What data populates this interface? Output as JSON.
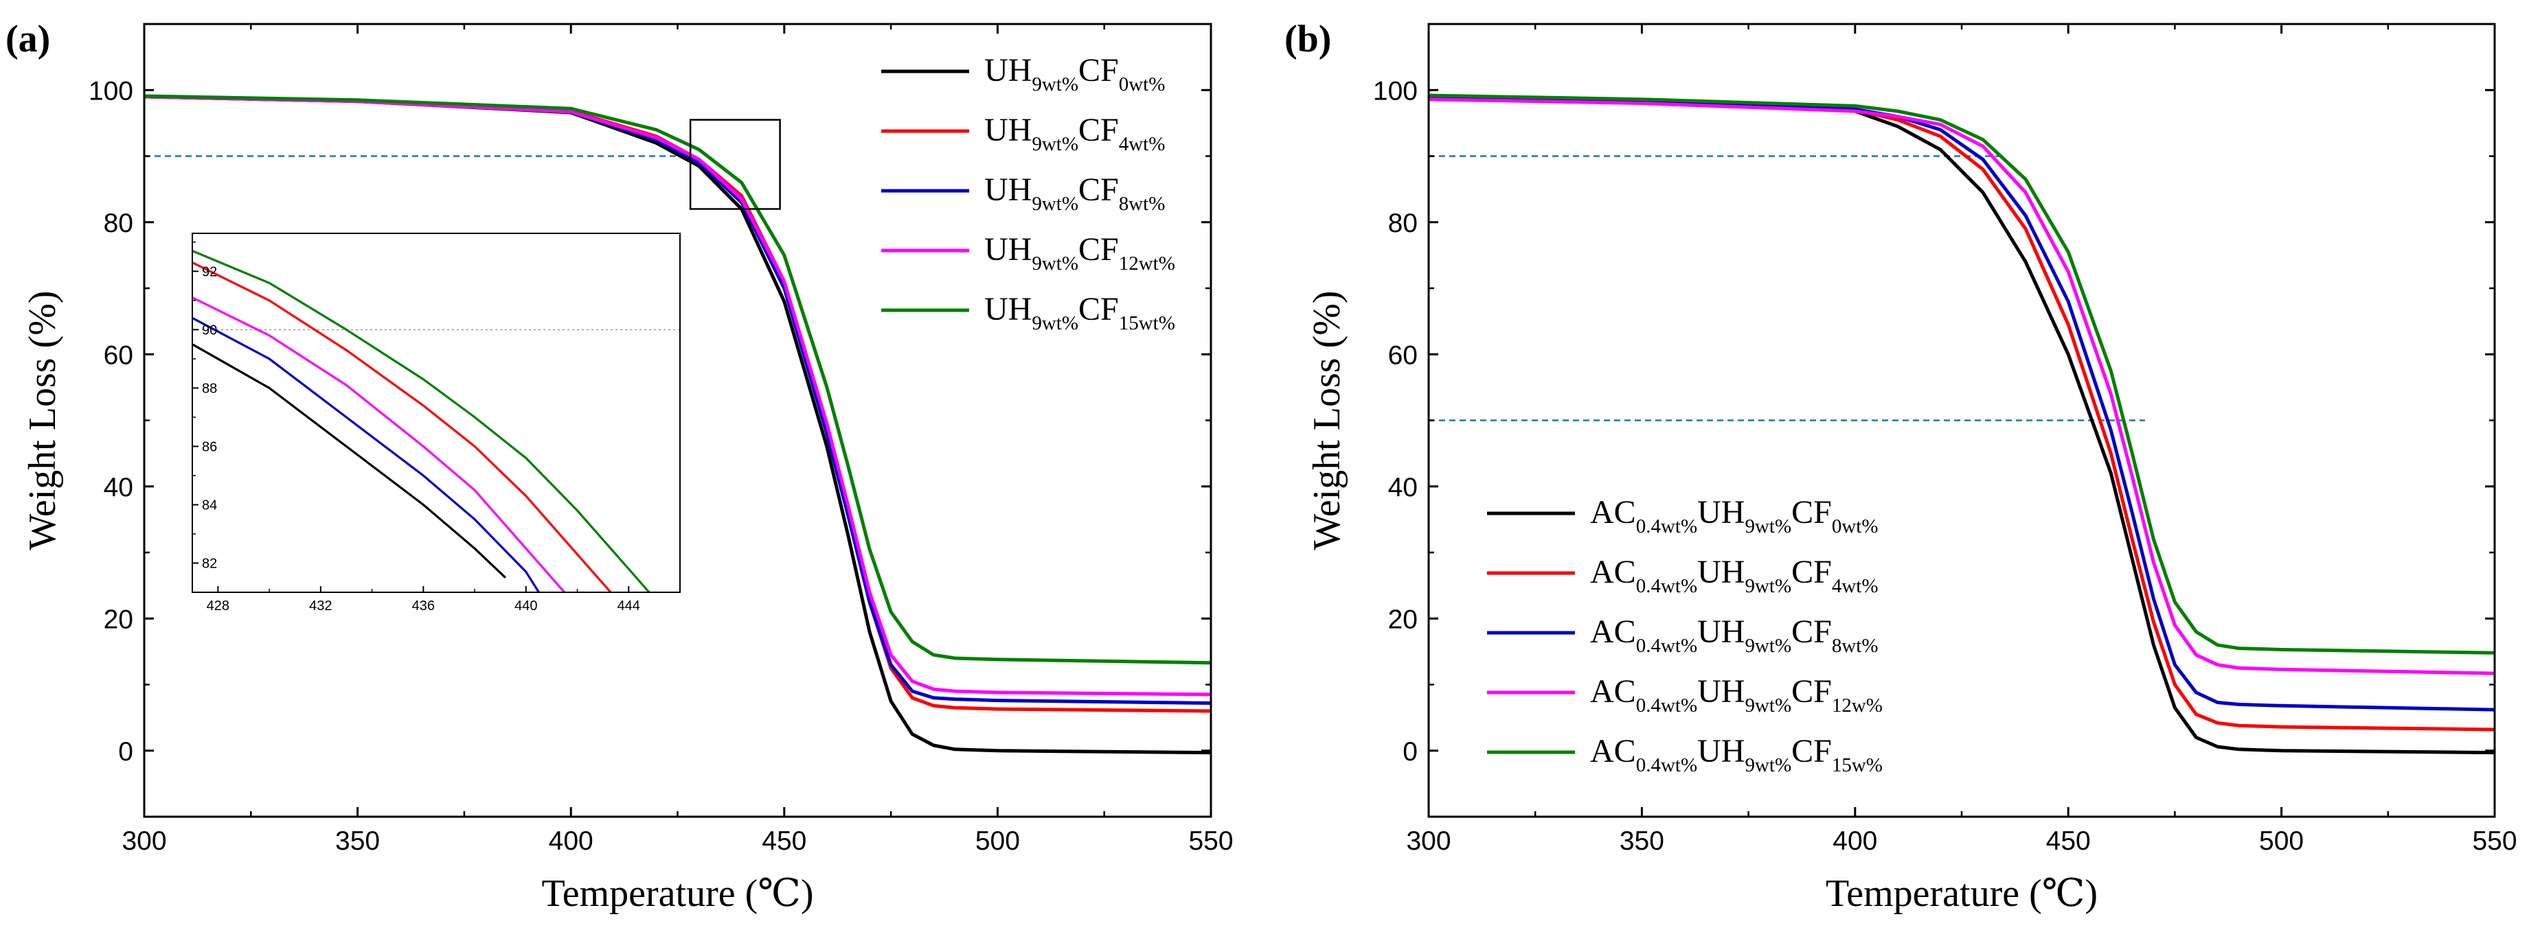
{
  "chart_data": [
    {
      "id": "a",
      "type": "line",
      "panel_label": "(a)",
      "xlabel": "Temperature (℃)",
      "ylabel": "Weight Loss (%)",
      "xlim": [
        300,
        550
      ],
      "ylim": [
        -10,
        110
      ],
      "xticks": [
        300,
        350,
        400,
        450,
        500,
        550
      ],
      "yticks": [
        0,
        20,
        40,
        60,
        80,
        100
      ],
      "reference_lines": [
        {
          "axis": "y",
          "value": 90,
          "style": "dashed",
          "color": "#1f77b4",
          "x_from": 300,
          "x_to": 425
        }
      ],
      "zoom_box": {
        "x": [
          428,
          449
        ],
        "y": [
          82,
          95.5
        ]
      },
      "legend": {
        "position": "top-right",
        "entries": [
          {
            "prefix": "UH",
            "parts": [
              [
                "9wt%",
                "sub"
              ],
              [
                "CF",
                "base"
              ],
              [
                "0wt%",
                "sub"
              ]
            ],
            "color": "#000000"
          },
          {
            "prefix": "UH",
            "parts": [
              [
                "9wt%",
                "sub"
              ],
              [
                "CF",
                "base"
              ],
              [
                "4wt%",
                "sub"
              ]
            ],
            "color": "#ff0000"
          },
          {
            "prefix": "UH",
            "parts": [
              [
                "9wt%",
                "sub"
              ],
              [
                "CF",
                "base"
              ],
              [
                "8wt%",
                "sub"
              ]
            ],
            "color": "#0000cc"
          },
          {
            "prefix": "UH",
            "parts": [
              [
                "9wt%",
                "sub"
              ],
              [
                "CF",
                "base"
              ],
              [
                "12wt%",
                "sub"
              ]
            ],
            "color": "#ff00ff"
          },
          {
            "prefix": "UH",
            "parts": [
              [
                "9wt%",
                "sub"
              ],
              [
                "CF",
                "base"
              ],
              [
                "15wt%",
                "sub"
              ]
            ],
            "color": "#008000"
          }
        ]
      },
      "series": [
        {
          "name": "UH9wt%CF0wt%",
          "color": "#000000",
          "x": [
            300,
            350,
            400,
            420,
            430,
            440,
            450,
            460,
            465,
            470,
            475,
            480,
            485,
            490,
            500,
            550
          ],
          "y": [
            99.0,
            98.3,
            96.6,
            92.0,
            88.5,
            82.0,
            68.0,
            46.0,
            32.5,
            18.0,
            7.5,
            2.5,
            0.8,
            0.2,
            0.0,
            -0.3
          ]
        },
        {
          "name": "UH9wt%CF4wt%",
          "color": "#ff0000",
          "x": [
            300,
            350,
            400,
            420,
            430,
            440,
            450,
            460,
            465,
            470,
            475,
            480,
            485,
            490,
            500,
            550
          ],
          "y": [
            99.0,
            98.3,
            96.8,
            93.0,
            89.5,
            84.0,
            71.0,
            49.0,
            36.0,
            22.5,
            12.5,
            8.0,
            6.8,
            6.5,
            6.3,
            6.0
          ]
        },
        {
          "name": "UH9wt%CF8wt%",
          "color": "#0000cc",
          "x": [
            300,
            350,
            400,
            420,
            430,
            440,
            450,
            460,
            465,
            470,
            475,
            480,
            485,
            490,
            500,
            550
          ],
          "y": [
            99.0,
            98.3,
            96.7,
            92.5,
            89.0,
            83.0,
            70.0,
            48.0,
            35.5,
            22.5,
            13.0,
            9.0,
            8.0,
            7.8,
            7.6,
            7.2
          ]
        },
        {
          "name": "UH9wt%CF12wt%",
          "color": "#ff00ff",
          "x": [
            300,
            350,
            400,
            420,
            430,
            440,
            450,
            460,
            465,
            470,
            475,
            480,
            485,
            490,
            500,
            550
          ],
          "y": [
            99.0,
            98.3,
            96.7,
            92.8,
            89.5,
            83.5,
            71.0,
            49.5,
            37.0,
            24.0,
            14.5,
            10.5,
            9.3,
            9.0,
            8.8,
            8.5
          ]
        },
        {
          "name": "UH9wt%CF15wt%",
          "color": "#008000",
          "x": [
            300,
            350,
            400,
            420,
            430,
            440,
            450,
            460,
            465,
            470,
            475,
            480,
            485,
            490,
            500,
            550
          ],
          "y": [
            99.1,
            98.5,
            97.2,
            94.0,
            91.0,
            86.0,
            75.0,
            55.0,
            43.0,
            30.5,
            21.0,
            16.5,
            14.5,
            14.0,
            13.8,
            13.3
          ]
        }
      ],
      "inset": {
        "xlim": [
          427,
          446
        ],
        "ylim": [
          81,
          93.3
        ],
        "xticks": [
          428,
          432,
          436,
          440,
          444
        ],
        "yticks": [
          82,
          84,
          86,
          88,
          90,
          92
        ],
        "reference_lines": [
          {
            "axis": "y",
            "value": 90,
            "style": "dotted",
            "color": "#999999"
          }
        ],
        "series": [
          {
            "name": "UH9wt%CF0wt%",
            "color": "#000000",
            "x": [
              427,
              430,
              433,
              436,
              438,
              439.2
            ],
            "y": [
              89.5,
              88.0,
              86.0,
              84.0,
              82.5,
              81.5
            ]
          },
          {
            "name": "UH9wt%CF8wt%",
            "color": "#0000cc",
            "x": [
              427,
              430,
              433,
              436,
              438,
              440,
              440.5
            ],
            "y": [
              90.4,
              89.0,
              87.0,
              85.0,
              83.5,
              81.7,
              81.0
            ]
          },
          {
            "name": "UH9wt%CF12wt%",
            "color": "#ff00ff",
            "x": [
              427,
              430,
              433,
              436,
              438,
              440,
              441.5
            ],
            "y": [
              91.1,
              89.8,
              88.1,
              86.0,
              84.5,
              82.5,
              81.0
            ]
          },
          {
            "name": "UH9wt%CF4wt%",
            "color": "#ff0000",
            "x": [
              427,
              430,
              433,
              436,
              438,
              440,
              442,
              443.3
            ],
            "y": [
              92.3,
              91.0,
              89.3,
              87.4,
              86.0,
              84.3,
              82.3,
              81.0
            ]
          },
          {
            "name": "UH9wt%CF15wt%",
            "color": "#008000",
            "x": [
              427,
              430,
              433,
              436,
              438,
              440,
              442,
              444,
              445
            ],
            "y": [
              92.7,
              91.6,
              90.0,
              88.3,
              87.0,
              85.6,
              83.8,
              81.8,
              80.8
            ]
          }
        ]
      }
    },
    {
      "id": "b",
      "type": "line",
      "panel_label": "(b)",
      "xlabel": "Temperature (℃)",
      "ylabel": "Weight Loss (%)",
      "xlim": [
        300,
        550
      ],
      "ylim": [
        -10,
        110
      ],
      "xticks": [
        300,
        350,
        400,
        450,
        500,
        550
      ],
      "yticks": [
        0,
        20,
        40,
        60,
        80,
        100
      ],
      "reference_lines": [
        {
          "axis": "y",
          "value": 90,
          "style": "dashed",
          "color": "#1f77b4",
          "x_from": 300,
          "x_to": 434
        },
        {
          "axis": "y",
          "value": 50,
          "style": "dashed",
          "color": "#1f77b4",
          "x_from": 300,
          "x_to": 468
        }
      ],
      "legend": {
        "position": "bottom-left",
        "entries": [
          {
            "prefix": "AC",
            "parts": [
              [
                "0.4wt%",
                "sub"
              ],
              [
                "UH",
                "base"
              ],
              [
                "9wt%",
                "sub"
              ],
              [
                "CF",
                "base"
              ],
              [
                "0wt%",
                "sub"
              ]
            ],
            "color": "#000000"
          },
          {
            "prefix": "AC",
            "parts": [
              [
                "0.4wt%",
                "sub"
              ],
              [
                "UH",
                "base"
              ],
              [
                "9wt%",
                "sub"
              ],
              [
                "CF",
                "base"
              ],
              [
                "4wt%",
                "sub"
              ]
            ],
            "color": "#ff0000"
          },
          {
            "prefix": "AC",
            "parts": [
              [
                "0.4wt%",
                "sub"
              ],
              [
                "UH",
                "base"
              ],
              [
                "9wt%",
                "sub"
              ],
              [
                "CF",
                "base"
              ],
              [
                "8wt%",
                "sub"
              ]
            ],
            "color": "#0000cc"
          },
          {
            "prefix": "AC",
            "parts": [
              [
                "0.4wt%",
                "sub"
              ],
              [
                "UH",
                "base"
              ],
              [
                "9wt%",
                "sub"
              ],
              [
                "CF",
                "base"
              ],
              [
                "12w%",
                "sub"
              ]
            ],
            "color": "#ff00ff"
          },
          {
            "prefix": "AC",
            "parts": [
              [
                "0.4wt%",
                "sub"
              ],
              [
                "UH",
                "base"
              ],
              [
                "9wt%",
                "sub"
              ],
              [
                "CF",
                "base"
              ],
              [
                "15w%",
                "sub"
              ]
            ],
            "color": "#008000"
          }
        ]
      },
      "series": [
        {
          "name": "AC0.4wt%UH9wt%CF0wt%",
          "color": "#000000",
          "x": [
            300,
            350,
            400,
            410,
            420,
            430,
            440,
            450,
            460,
            465,
            470,
            475,
            480,
            485,
            490,
            500,
            550
          ],
          "y": [
            99.0,
            98.5,
            96.8,
            94.5,
            91.0,
            84.5,
            74.0,
            60.0,
            42.0,
            29.0,
            16.0,
            6.5,
            2.0,
            0.6,
            0.2,
            0.0,
            -0.3
          ]
        },
        {
          "name": "AC0.4wt%UH9wt%CF4wt%",
          "color": "#ff0000",
          "x": [
            300,
            350,
            400,
            410,
            420,
            430,
            440,
            450,
            460,
            465,
            470,
            475,
            480,
            485,
            490,
            500,
            550
          ],
          "y": [
            99.0,
            98.4,
            97.0,
            95.5,
            93.0,
            88.0,
            79.0,
            64.5,
            45.0,
            32.0,
            19.5,
            10.0,
            5.5,
            4.2,
            3.8,
            3.6,
            3.2
          ]
        },
        {
          "name": "AC0.4wt%UH9wt%CF8wt%",
          "color": "#0000cc",
          "x": [
            300,
            350,
            400,
            410,
            420,
            430,
            440,
            450,
            460,
            465,
            470,
            475,
            480,
            485,
            490,
            500,
            550
          ],
          "y": [
            99.0,
            98.4,
            97.1,
            96.0,
            94.0,
            89.5,
            81.0,
            68.0,
            48.5,
            36.0,
            23.0,
            13.0,
            8.8,
            7.3,
            7.0,
            6.8,
            6.2
          ]
        },
        {
          "name": "AC0.4wt%UH9wt%CF12w%",
          "color": "#ff00ff",
          "x": [
            300,
            350,
            400,
            410,
            420,
            430,
            440,
            450,
            460,
            465,
            470,
            475,
            480,
            485,
            490,
            500,
            550
          ],
          "y": [
            98.6,
            98.0,
            96.8,
            96.0,
            94.8,
            91.5,
            84.5,
            72.5,
            54.0,
            41.5,
            28.5,
            19.0,
            14.5,
            13.0,
            12.5,
            12.3,
            11.7
          ]
        },
        {
          "name": "AC0.4wt%UH9wt%CF15w%",
          "color": "#008000",
          "x": [
            300,
            350,
            400,
            410,
            420,
            430,
            440,
            450,
            460,
            465,
            470,
            475,
            480,
            485,
            490,
            500,
            550
          ],
          "y": [
            99.2,
            98.6,
            97.6,
            96.8,
            95.5,
            92.5,
            86.5,
            75.5,
            57.5,
            45.0,
            32.0,
            22.5,
            18.0,
            16.0,
            15.5,
            15.3,
            14.8
          ]
        }
      ]
    }
  ]
}
